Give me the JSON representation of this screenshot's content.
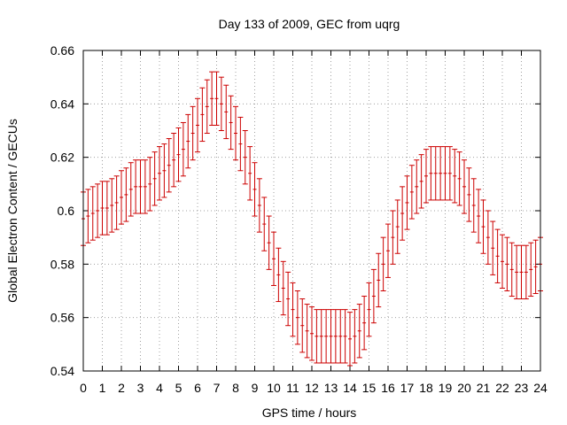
{
  "chart_data": {
    "type": "scatter",
    "title": "Day 133 of 2009, GEC from uqrg",
    "xlabel": "GPS time / hours",
    "ylabel": "Global Electron Content / GECUs",
    "xlim": [
      0,
      24
    ],
    "ylim": [
      0.54,
      0.66
    ],
    "x_ticks": [
      0,
      1,
      2,
      3,
      4,
      5,
      6,
      7,
      8,
      9,
      10,
      11,
      12,
      13,
      14,
      15,
      16,
      17,
      18,
      19,
      20,
      21,
      22,
      23,
      24
    ],
    "x_tick_labels": [
      "0",
      "1",
      "2",
      "3",
      "4",
      "5",
      "6",
      "7",
      "8",
      "9",
      "10",
      "11",
      "12",
      "13",
      "14",
      "15",
      "16",
      "17",
      "18",
      "19",
      "20",
      "21",
      "22",
      "23",
      "24"
    ],
    "y_ticks": [
      0.54,
      0.56,
      0.58,
      0.6,
      0.62,
      0.64,
      0.66
    ],
    "y_tick_labels": [
      "0.54",
      "0.56",
      "0.58",
      "0.6",
      "0.62",
      "0.64",
      "0.66"
    ],
    "grid": true,
    "error_bar": 0.01,
    "series": [
      {
        "name": "GEC",
        "color": "#cc0000",
        "x": [
          0,
          0.25,
          0.5,
          0.75,
          1,
          1.25,
          1.5,
          1.75,
          2,
          2.25,
          2.5,
          2.75,
          3,
          3.25,
          3.5,
          3.75,
          4,
          4.25,
          4.5,
          4.75,
          5,
          5.25,
          5.5,
          5.75,
          6,
          6.25,
          6.5,
          6.75,
          7,
          7.25,
          7.5,
          7.75,
          8,
          8.25,
          8.5,
          8.75,
          9,
          9.25,
          9.5,
          9.75,
          10,
          10.25,
          10.5,
          10.75,
          11,
          11.25,
          11.5,
          11.75,
          12,
          12.25,
          12.5,
          12.75,
          13,
          13.25,
          13.5,
          13.75,
          14,
          14.25,
          14.5,
          14.75,
          15,
          15.25,
          15.5,
          15.75,
          16,
          16.25,
          16.5,
          16.75,
          17,
          17.25,
          17.5,
          17.75,
          18,
          18.25,
          18.5,
          18.75,
          19,
          19.25,
          19.5,
          19.75,
          20,
          20.25,
          20.5,
          20.75,
          21,
          21.25,
          21.5,
          21.75,
          22,
          22.25,
          22.5,
          22.75,
          23,
          23.25,
          23.5,
          23.75,
          24
        ],
        "y": [
          0.597,
          0.598,
          0.599,
          0.6,
          0.601,
          0.601,
          0.602,
          0.603,
          0.605,
          0.606,
          0.608,
          0.609,
          0.609,
          0.609,
          0.61,
          0.612,
          0.614,
          0.615,
          0.617,
          0.619,
          0.621,
          0.623,
          0.626,
          0.629,
          0.632,
          0.636,
          0.639,
          0.642,
          0.642,
          0.64,
          0.637,
          0.633,
          0.629,
          0.625,
          0.62,
          0.614,
          0.608,
          0.602,
          0.595,
          0.588,
          0.582,
          0.576,
          0.571,
          0.567,
          0.563,
          0.56,
          0.557,
          0.555,
          0.554,
          0.553,
          0.553,
          0.553,
          0.553,
          0.553,
          0.553,
          0.553,
          0.552,
          0.553,
          0.555,
          0.558,
          0.563,
          0.568,
          0.574,
          0.58,
          0.585,
          0.59,
          0.594,
          0.599,
          0.603,
          0.607,
          0.609,
          0.611,
          0.613,
          0.614,
          0.614,
          0.614,
          0.614,
          0.614,
          0.613,
          0.612,
          0.609,
          0.606,
          0.602,
          0.598,
          0.594,
          0.59,
          0.586,
          0.583,
          0.581,
          0.58,
          0.578,
          0.577,
          0.577,
          0.577,
          0.578,
          0.579,
          0.58
        ]
      }
    ]
  }
}
